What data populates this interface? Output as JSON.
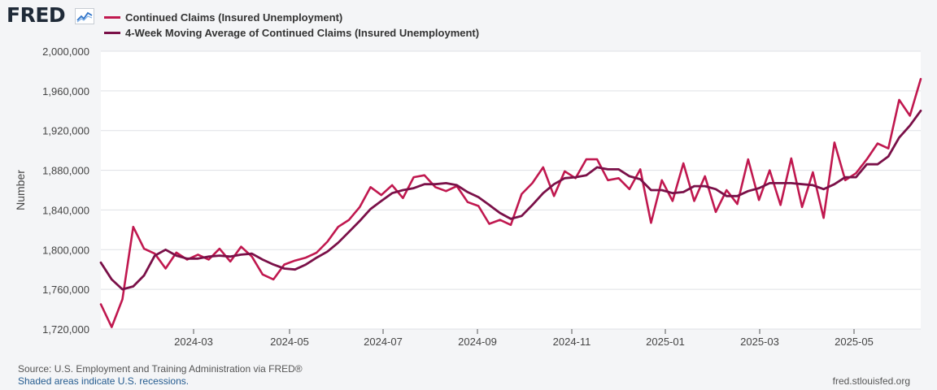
{
  "header": {
    "logo_text": "FRED",
    "logo_icon": "line-chart-icon"
  },
  "legend": [
    {
      "label": "Continued Claims (Insured Unemployment)",
      "color": "#c0184f"
    },
    {
      "label": "4-Week Moving Average of Continued Claims (Insured Unemployment)",
      "color": "#7a1048"
    }
  ],
  "footer": {
    "source": "Source: U.S. Employment and Training Administration via FRED®",
    "recession_note": "Shaded areas indicate U.S. recessions.",
    "site": "fred.stlouisfed.org"
  },
  "chart_data": {
    "type": "line",
    "ylabel": "Number",
    "ylim": [
      1720000,
      2000000
    ],
    "yticks": [
      1720000,
      1760000,
      1800000,
      1840000,
      1880000,
      1920000,
      1960000,
      2000000
    ],
    "ytick_labels": [
      "1,720,000",
      "1,760,000",
      "1,800,000",
      "1,840,000",
      "1,880,000",
      "1,920,000",
      "1,960,000",
      "2,000,000"
    ],
    "xticks": [
      "2024-03",
      "2024-05",
      "2024-07",
      "2024-09",
      "2024-11",
      "2025-01",
      "2025-03",
      "2025-05"
    ],
    "grid": true,
    "colors": {
      "plot_bg": "#ffffff",
      "grid": "#dfe1e5",
      "axis": "#555555"
    },
    "series": [
      {
        "name": "Continued Claims (Insured Unemployment)",
        "color": "#c0184f",
        "values": [
          1745000,
          1722000,
          1750000,
          1823000,
          1801000,
          1796000,
          1781000,
          1797000,
          1790000,
          1795000,
          1790000,
          1801000,
          1788000,
          1803000,
          1793000,
          1775000,
          1770000,
          1785000,
          1789000,
          1792000,
          1797000,
          1808000,
          1823000,
          1830000,
          1843000,
          1863000,
          1855000,
          1865000,
          1852000,
          1873000,
          1875000,
          1863000,
          1859000,
          1864000,
          1848000,
          1844000,
          1826000,
          1830000,
          1825000,
          1856000,
          1867000,
          1883000,
          1854000,
          1879000,
          1872000,
          1891000,
          1891000,
          1870000,
          1872000,
          1861000,
          1881000,
          1827000,
          1870000,
          1849000,
          1887000,
          1849000,
          1874000,
          1838000,
          1860000,
          1846000,
          1891000,
          1850000,
          1880000,
          1845000,
          1892000,
          1843000,
          1878000,
          1832000,
          1908000,
          1870000,
          1877000,
          1891000,
          1907000,
          1902000,
          1951000,
          1935000,
          1972000
        ]
      },
      {
        "name": "4-Week Moving Average of Continued Claims (Insured Unemployment)",
        "color": "#7a1048",
        "values": [
          1787000,
          1770000,
          1760000,
          1763000,
          1774000,
          1794000,
          1800000,
          1794000,
          1791000,
          1791000,
          1793000,
          1794000,
          1793000,
          1795000,
          1796000,
          1790000,
          1785000,
          1781000,
          1780000,
          1785000,
          1792000,
          1798000,
          1807000,
          1818000,
          1829000,
          1841000,
          1849000,
          1857000,
          1860000,
          1862000,
          1866000,
          1866000,
          1867000,
          1865000,
          1858000,
          1853000,
          1845000,
          1837000,
          1831000,
          1834000,
          1845000,
          1857000,
          1866000,
          1872000,
          1873000,
          1875000,
          1883000,
          1881000,
          1881000,
          1874000,
          1871000,
          1860000,
          1860000,
          1857000,
          1858000,
          1864000,
          1864000,
          1861000,
          1854000,
          1854000,
          1859000,
          1862000,
          1867000,
          1867000,
          1867000,
          1866000,
          1865000,
          1861000,
          1866000,
          1873000,
          1873000,
          1886000,
          1886000,
          1894000,
          1913000,
          1925000,
          1940000
        ]
      }
    ]
  }
}
